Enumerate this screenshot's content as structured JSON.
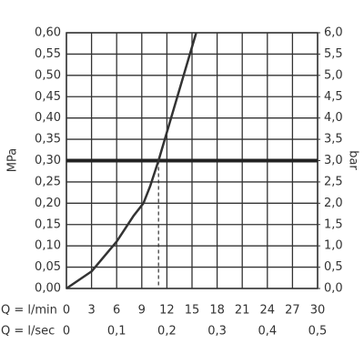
{
  "chart_data": {
    "type": "line",
    "y_label": "MPa",
    "y2_label": "bar",
    "x_label": "Q = l/min",
    "x2_label": "Q = l/sec",
    "x": [
      0,
      3,
      6,
      8,
      9.2,
      10,
      11,
      12.5,
      14,
      15.5
    ],
    "series": [
      {
        "color": "#333333",
        "values": [
          0,
          0.04,
          0.11,
          0.17,
          0.2,
          0.24,
          0.3,
          0.4,
          0.5,
          0.6
        ]
      }
    ],
    "xlim": [
      0,
      30
    ],
    "xticks": [
      0,
      3,
      6,
      9,
      12,
      15,
      18,
      21,
      24,
      27,
      30
    ],
    "x2lim": [
      0,
      0.5
    ],
    "x2ticks": [
      0,
      {
        "value": 0.1,
        "label": "0,1"
      },
      {
        "value": 0.2,
        "label": "0,2"
      },
      {
        "value": 0.3,
        "label": "0,3"
      },
      {
        "value": 0.4,
        "label": "0,4"
      },
      {
        "value": 0.5,
        "label": "0,5"
      }
    ],
    "ylim": [
      0,
      0.6
    ],
    "yticks": [
      {
        "value": 0,
        "label": "0,00"
      },
      {
        "value": 0.05,
        "label": "0,05"
      },
      {
        "value": 0.1,
        "label": "0,10"
      },
      {
        "value": 0.15,
        "label": "0,15"
      },
      {
        "value": 0.2,
        "label": "0,20"
      },
      {
        "value": 0.25,
        "label": "0,25"
      },
      {
        "value": 0.3,
        "label": "0,30"
      },
      {
        "value": 0.35,
        "label": "0,35"
      },
      {
        "value": 0.4,
        "label": "0,40"
      },
      {
        "value": 0.45,
        "label": "0,45"
      },
      {
        "value": 0.5,
        "label": "0,50"
      },
      {
        "value": 0.55,
        "label": "0,55"
      },
      {
        "value": 0.6,
        "label": "0,60"
      }
    ],
    "y2lim": [
      0,
      6
    ],
    "y2ticks": [
      {
        "value": 0,
        "label": "0,0"
      },
      {
        "value": 0.5,
        "label": "0,5"
      },
      {
        "value": 1,
        "label": "1,0"
      },
      {
        "value": 1.5,
        "label": "1,5"
      },
      {
        "value": 2,
        "label": "2,0"
      },
      {
        "value": 2.5,
        "label": "2,5"
      },
      {
        "value": 3,
        "label": "3,0"
      },
      {
        "value": 3.5,
        "label": "3,5"
      },
      {
        "value": 4,
        "label": "4,0"
      },
      {
        "value": 4.5,
        "label": "4,5"
      },
      {
        "value": 5,
        "label": "5,0"
      },
      {
        "value": 5.5,
        "label": "5,5"
      },
      {
        "value": 6,
        "label": "6,0"
      }
    ],
    "reference_y": 0.3,
    "reference_x": 11,
    "grid": true
  }
}
